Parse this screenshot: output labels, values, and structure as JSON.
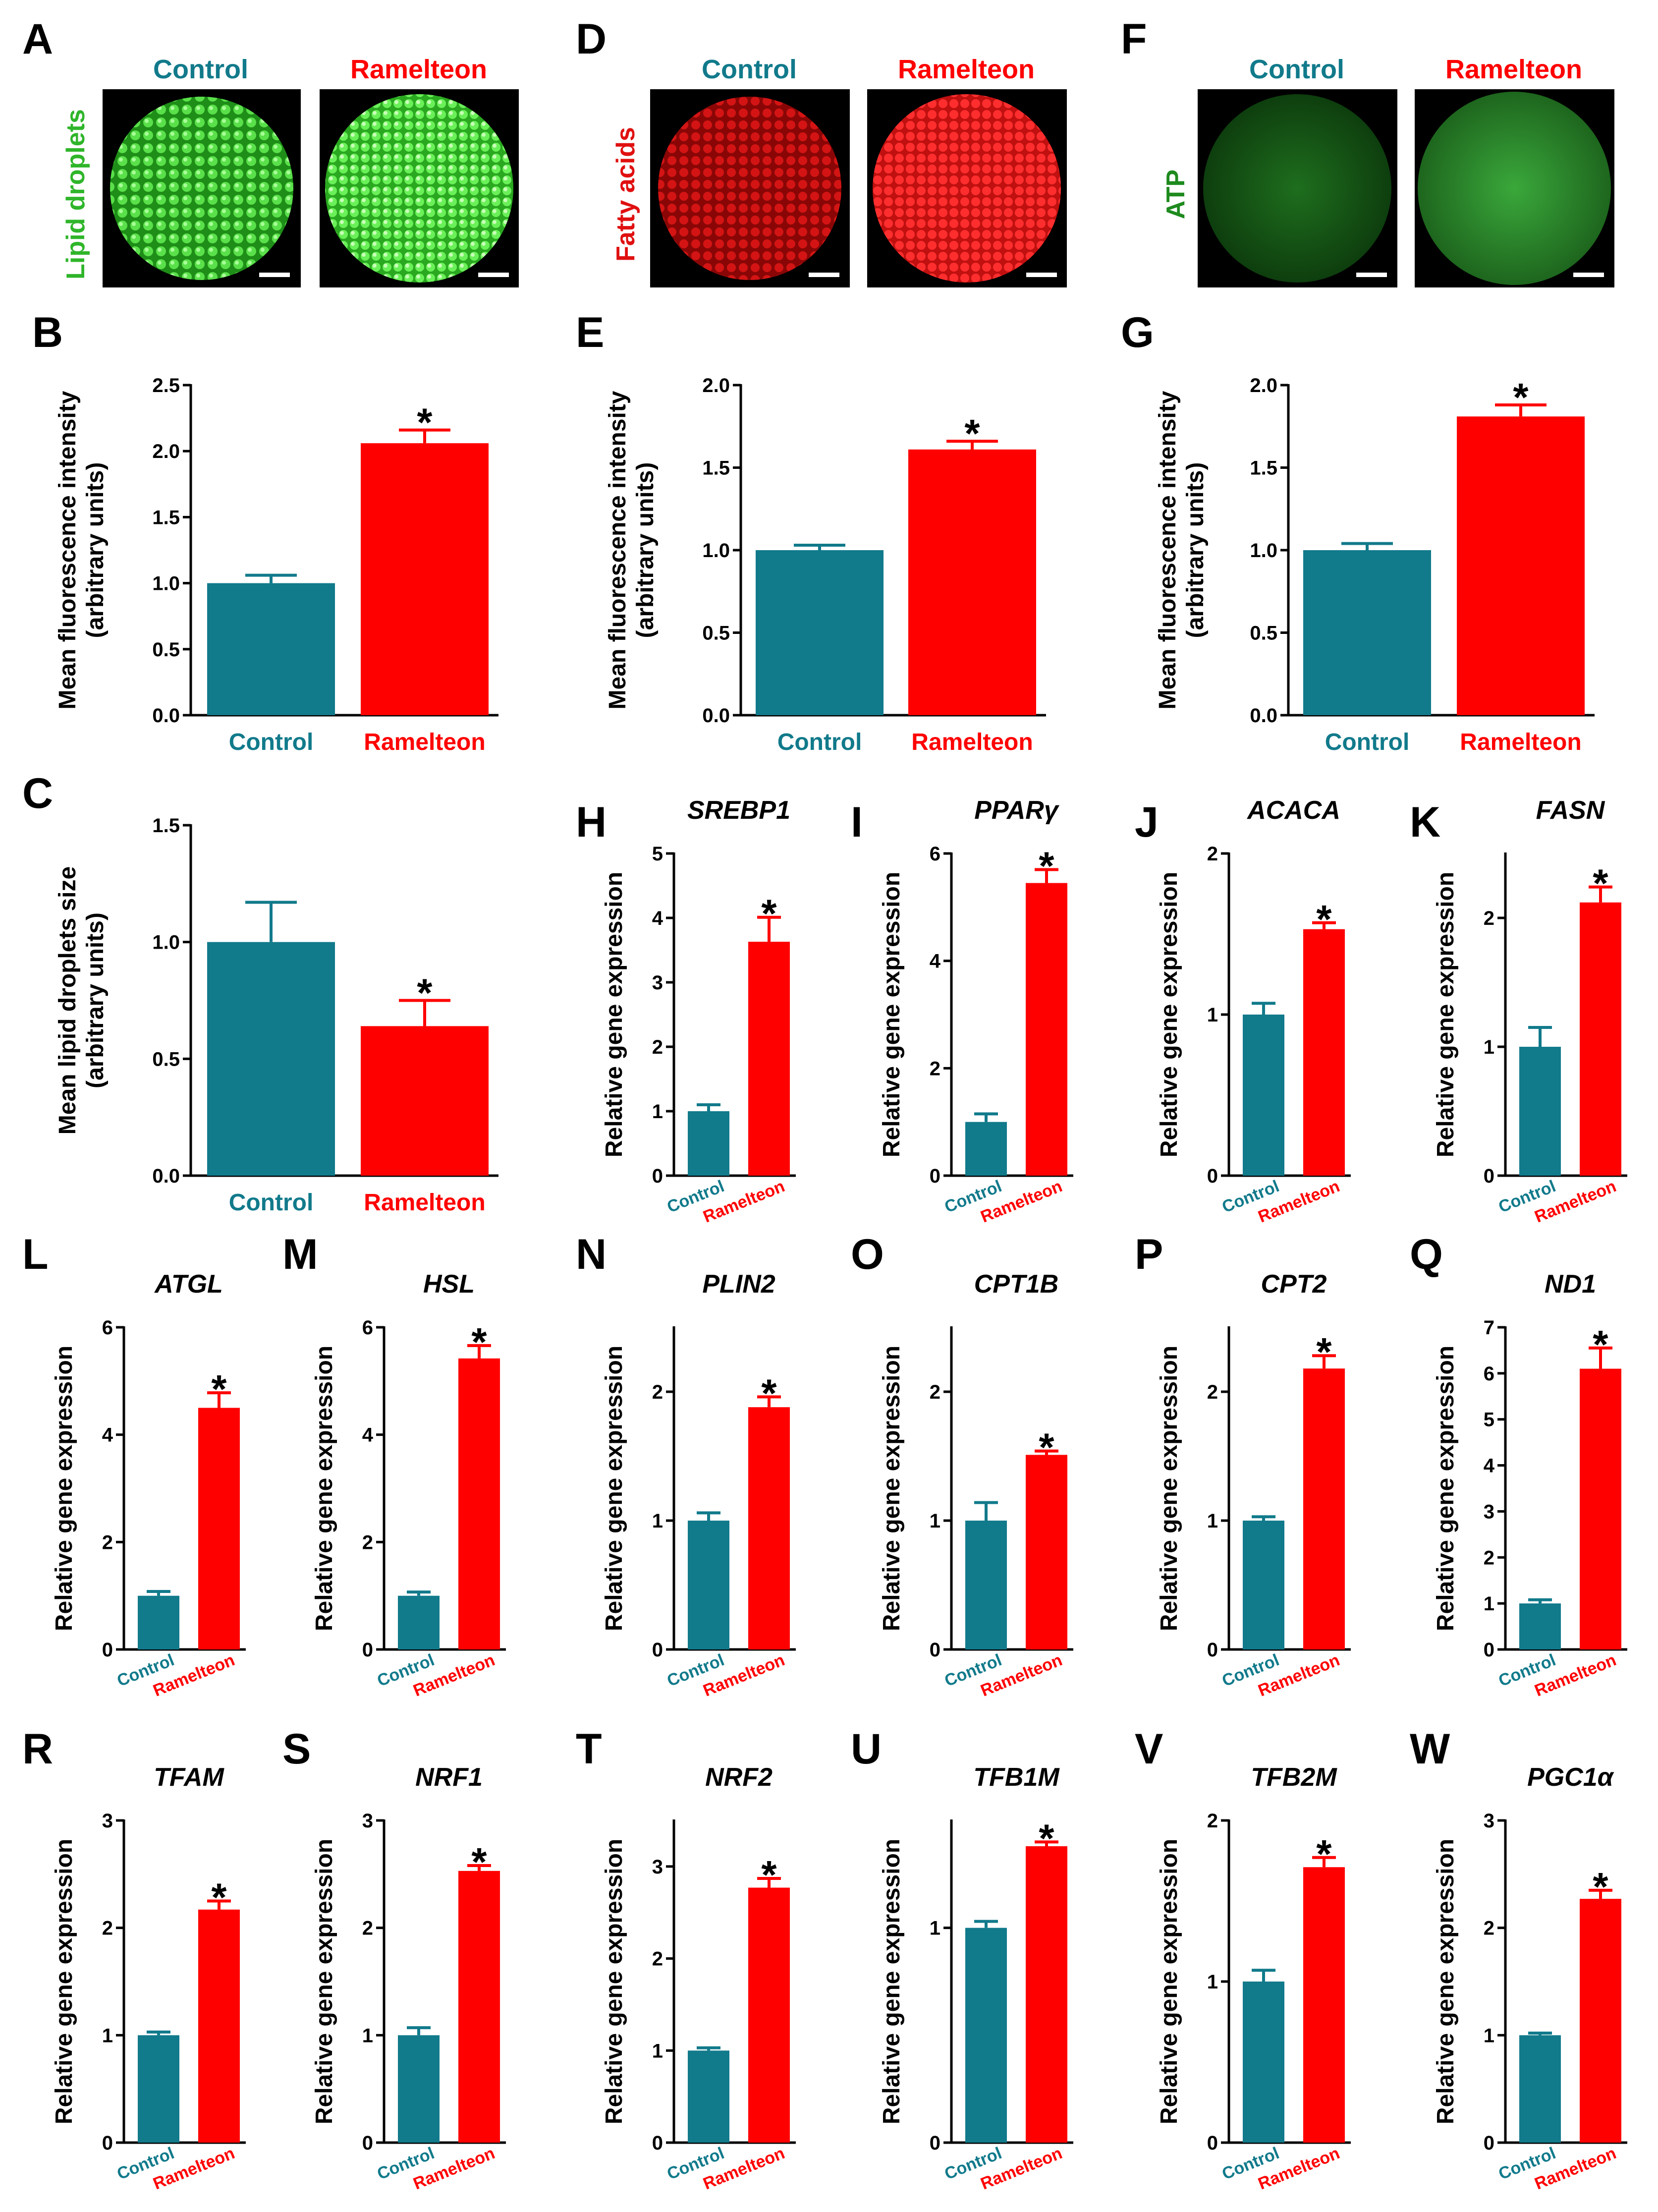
{
  "colors": {
    "control": "#117A8B",
    "treatment": "#FF0000",
    "axis": "#000000",
    "stain_green": "#2FB52A",
    "stain_red": "#E01010"
  },
  "images": [
    {
      "panel": "A",
      "stain": "Lipid droplets",
      "stain_color": "#2FB52A",
      "titles": [
        "Control",
        "Ramelteon"
      ]
    },
    {
      "panel": "D",
      "stain": "Fatty acids",
      "stain_color": "#E01010",
      "titles": [
        "Control",
        "Ramelteon"
      ]
    },
    {
      "panel": "F",
      "stain": "ATP",
      "stain_color": "#1E8A1E",
      "titles": [
        "Control",
        "Ramelteon"
      ]
    }
  ],
  "chart_data": [
    {
      "panel": "B",
      "type": "bar",
      "title": "",
      "ylabel": [
        "Mean fluorescence intensity",
        "(arbitrary units)"
      ],
      "categories": [
        "Control",
        "Ramelteon"
      ],
      "values": [
        1.0,
        2.06
      ],
      "errors": [
        0.06,
        0.1
      ],
      "ylim": [
        0,
        2.5
      ],
      "ticks": [
        0.0,
        0.5,
        1.0,
        1.5,
        2.0,
        2.5
      ],
      "tick_labels": [
        "0.0",
        "0.5",
        "1.0",
        "1.5",
        "2.0",
        "2.5"
      ],
      "significance": [
        "",
        "*"
      ]
    },
    {
      "panel": "E",
      "type": "bar",
      "title": "",
      "ylabel": [
        "Mean fluorescence intensity",
        "(arbitrary units)"
      ],
      "categories": [
        "Control",
        "Ramelteon"
      ],
      "values": [
        1.0,
        1.61
      ],
      "errors": [
        0.03,
        0.05
      ],
      "ylim": [
        0,
        2.0
      ],
      "ticks": [
        0.0,
        0.5,
        1.0,
        1.5,
        2.0
      ],
      "tick_labels": [
        "0.0",
        "0.5",
        "1.0",
        "1.5",
        "2.0"
      ],
      "significance": [
        "",
        "*"
      ]
    },
    {
      "panel": "G",
      "type": "bar",
      "title": "",
      "ylabel": [
        "Mean fluorescence intensity",
        "(arbitrary units)"
      ],
      "categories": [
        "Control",
        "Ramelteon"
      ],
      "values": [
        1.0,
        1.81
      ],
      "errors": [
        0.04,
        0.07
      ],
      "ylim": [
        0,
        2.0
      ],
      "ticks": [
        0.0,
        0.5,
        1.0,
        1.5,
        2.0
      ],
      "tick_labels": [
        "0.0",
        "0.5",
        "1.0",
        "1.5",
        "2.0"
      ],
      "significance": [
        "",
        "*"
      ]
    },
    {
      "panel": "C",
      "type": "bar",
      "title": "",
      "ylabel": [
        "Mean lipid droplets size",
        "(arbitrary units)"
      ],
      "categories": [
        "Control",
        "Ramelteon"
      ],
      "values": [
        1.0,
        0.64
      ],
      "errors": [
        0.17,
        0.11
      ],
      "ylim": [
        0,
        1.5
      ],
      "ticks": [
        0.0,
        0.5,
        1.0,
        1.5
      ],
      "tick_labels": [
        "0.0",
        "0.5",
        "1.0",
        "1.5"
      ],
      "significance": [
        "",
        "*"
      ]
    },
    {
      "panel": "H",
      "type": "bar",
      "title": "SREBP1",
      "ylabel": [
        "Relative gene expression"
      ],
      "categories": [
        "Control",
        "Ramelteon"
      ],
      "values": [
        1.0,
        3.63
      ],
      "errors": [
        0.1,
        0.38
      ],
      "ylim": [
        0,
        5
      ],
      "ticks": [
        0,
        1,
        2,
        3,
        4,
        5
      ],
      "tick_labels": [
        "0",
        "1",
        "2",
        "3",
        "4",
        "5"
      ],
      "significance": [
        "",
        "*"
      ]
    },
    {
      "panel": "I",
      "type": "bar",
      "title": "PPARγ",
      "ylabel": [
        "Relative gene expression"
      ],
      "categories": [
        "Control",
        "Ramelteon"
      ],
      "values": [
        1.0,
        5.45
      ],
      "errors": [
        0.15,
        0.25
      ],
      "ylim": [
        0,
        6
      ],
      "ticks": [
        0,
        2,
        4,
        6
      ],
      "tick_labels": [
        "0",
        "2",
        "4",
        "6"
      ],
      "significance": [
        "",
        "*"
      ]
    },
    {
      "panel": "J",
      "type": "bar",
      "title": "ACACA",
      "ylabel": [
        "Relative gene expression"
      ],
      "categories": [
        "Control",
        "Ramelteon"
      ],
      "values": [
        1.0,
        1.53
      ],
      "errors": [
        0.07,
        0.04
      ],
      "ylim": [
        0,
        2
      ],
      "ticks": [
        0,
        1,
        2
      ],
      "tick_labels": [
        "0",
        "1",
        "2"
      ],
      "significance": [
        "",
        "*"
      ]
    },
    {
      "panel": "K",
      "type": "bar",
      "title": "FASN",
      "ylabel": [
        "Relative gene expression"
      ],
      "categories": [
        "Control",
        "Ramelteon"
      ],
      "values": [
        1.0,
        2.12
      ],
      "errors": [
        0.15,
        0.12
      ],
      "ylim": [
        0,
        2.5
      ],
      "ticks": [
        0,
        1,
        2
      ],
      "tick_labels": [
        "0",
        "1",
        "2"
      ],
      "significance": [
        "",
        "*"
      ]
    },
    {
      "panel": "L",
      "type": "bar",
      "title": "ATGL",
      "ylabel": [
        "Relative gene expression"
      ],
      "categories": [
        "Control",
        "Ramelteon"
      ],
      "values": [
        1.0,
        4.5
      ],
      "errors": [
        0.08,
        0.28
      ],
      "ylim": [
        0,
        6
      ],
      "ticks": [
        0,
        2,
        4,
        6
      ],
      "tick_labels": [
        "0",
        "2",
        "4",
        "6"
      ],
      "significance": [
        "",
        "*"
      ]
    },
    {
      "panel": "M",
      "type": "bar",
      "title": "HSL",
      "ylabel": [
        "Relative gene expression"
      ],
      "categories": [
        "Control",
        "Ramelteon"
      ],
      "values": [
        1.0,
        5.42
      ],
      "errors": [
        0.07,
        0.24
      ],
      "ylim": [
        0,
        6
      ],
      "ticks": [
        0,
        2,
        4,
        6
      ],
      "tick_labels": [
        "0",
        "2",
        "4",
        "6"
      ],
      "significance": [
        "",
        "*"
      ]
    },
    {
      "panel": "N",
      "type": "bar",
      "title": "PLIN2",
      "ylabel": [
        "Relative gene expression"
      ],
      "categories": [
        "Control",
        "Ramelteon"
      ],
      "values": [
        1.0,
        1.88
      ],
      "errors": [
        0.06,
        0.08
      ],
      "ylim": [
        0,
        2.5
      ],
      "ticks": [
        0,
        1,
        2
      ],
      "tick_labels": [
        "0",
        "1",
        "2"
      ],
      "significance": [
        "",
        "*"
      ]
    },
    {
      "panel": "O",
      "type": "bar",
      "title": "CPT1B",
      "ylabel": [
        "Relative gene expression"
      ],
      "categories": [
        "Control",
        "Ramelteon"
      ],
      "values": [
        1.0,
        1.51
      ],
      "errors": [
        0.14,
        0.03
      ],
      "ylim": [
        0,
        2.5
      ],
      "ticks": [
        0,
        1,
        2
      ],
      "tick_labels": [
        "0",
        "1",
        "2"
      ],
      "significance": [
        "",
        "*"
      ]
    },
    {
      "panel": "P",
      "type": "bar",
      "title": "CPT2",
      "ylabel": [
        "Relative gene expression"
      ],
      "categories": [
        "Control",
        "Ramelteon"
      ],
      "values": [
        1.0,
        2.18
      ],
      "errors": [
        0.03,
        0.1
      ],
      "ylim": [
        0,
        2.5
      ],
      "ticks": [
        0,
        1,
        2
      ],
      "tick_labels": [
        "0",
        "1",
        "2"
      ],
      "significance": [
        "",
        "*"
      ]
    },
    {
      "panel": "Q",
      "type": "bar",
      "title": "ND1",
      "ylabel": [
        "Relative gene expression"
      ],
      "categories": [
        "Control",
        "Ramelteon"
      ],
      "values": [
        1.0,
        6.1
      ],
      "errors": [
        0.08,
        0.45
      ],
      "ylim": [
        0,
        7
      ],
      "ticks": [
        0,
        1,
        2,
        3,
        4,
        5,
        6,
        7
      ],
      "tick_labels": [
        "0",
        "1",
        "2",
        "3",
        "4",
        "5",
        "6",
        "7"
      ],
      "significance": [
        "",
        "*"
      ]
    },
    {
      "panel": "R",
      "type": "bar",
      "title": "TFAM",
      "ylabel": [
        "Relative gene expression"
      ],
      "categories": [
        "Control",
        "Ramelteon"
      ],
      "values": [
        1.0,
        2.17
      ],
      "errors": [
        0.03,
        0.08
      ],
      "ylim": [
        0,
        3
      ],
      "ticks": [
        0,
        1,
        2,
        3
      ],
      "tick_labels": [
        "0",
        "1",
        "2",
        "3"
      ],
      "significance": [
        "",
        "*"
      ]
    },
    {
      "panel": "S",
      "type": "bar",
      "title": "NRF1",
      "ylabel": [
        "Relative gene expression"
      ],
      "categories": [
        "Control",
        "Ramelteon"
      ],
      "values": [
        1.0,
        2.53
      ],
      "errors": [
        0.07,
        0.05
      ],
      "ylim": [
        0,
        3
      ],
      "ticks": [
        0,
        1,
        2,
        3
      ],
      "tick_labels": [
        "0",
        "1",
        "2",
        "3"
      ],
      "significance": [
        "",
        "*"
      ]
    },
    {
      "panel": "T",
      "type": "bar",
      "title": "NRF2",
      "ylabel": [
        "Relative gene expression"
      ],
      "categories": [
        "Control",
        "Ramelteon"
      ],
      "values": [
        1.0,
        2.77
      ],
      "errors": [
        0.03,
        0.1
      ],
      "ylim": [
        0,
        3.5
      ],
      "ticks": [
        0,
        1,
        2,
        3
      ],
      "tick_labels": [
        "0",
        "1",
        "2",
        "3"
      ],
      "significance": [
        "",
        "*"
      ]
    },
    {
      "panel": "U",
      "type": "bar",
      "title": "TFB1M",
      "ylabel": [
        "Relative gene expression"
      ],
      "categories": [
        "Control",
        "Ramelteon"
      ],
      "values": [
        1.0,
        1.38
      ],
      "errors": [
        0.03,
        0.02
      ],
      "ylim": [
        0,
        1.5
      ],
      "ticks": [
        0,
        1
      ],
      "tick_labels": [
        "0",
        "1"
      ],
      "significance": [
        "",
        "*"
      ]
    },
    {
      "panel": "V",
      "type": "bar",
      "title": "TFB2M",
      "ylabel": [
        "Relative gene expression"
      ],
      "categories": [
        "Control",
        "Ramelteon"
      ],
      "values": [
        1.0,
        1.71
      ],
      "errors": [
        0.07,
        0.06
      ],
      "ylim": [
        0,
        2
      ],
      "ticks": [
        0,
        1,
        2
      ],
      "tick_labels": [
        "0",
        "1",
        "2"
      ],
      "significance": [
        "",
        "*"
      ]
    },
    {
      "panel": "W",
      "type": "bar",
      "title": "PGC1α",
      "ylabel": [
        "Relative gene expression"
      ],
      "categories": [
        "Control",
        "Ramelteon"
      ],
      "values": [
        1.0,
        2.27
      ],
      "errors": [
        0.02,
        0.08
      ],
      "ylim": [
        0,
        3
      ],
      "ticks": [
        0,
        1,
        2,
        3
      ],
      "tick_labels": [
        "0",
        "1",
        "2",
        "3"
      ],
      "significance": [
        "",
        "*"
      ]
    }
  ]
}
